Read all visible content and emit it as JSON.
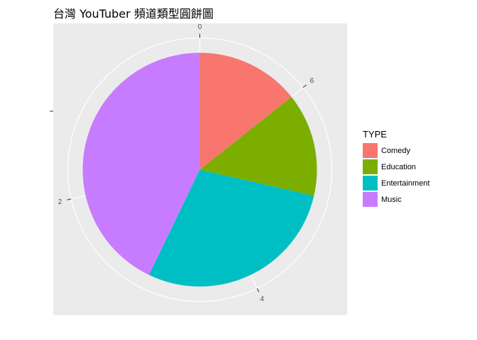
{
  "chart_data": {
    "type": "pie",
    "title": "台灣 YouTuber 頻道類型圓餅圖",
    "legend_title": "TYPE",
    "legend_position": "right",
    "categories": [
      "Comedy",
      "Education",
      "Entertainment",
      "Music"
    ],
    "values": [
      1,
      1,
      2,
      3
    ],
    "colors": [
      "#F8766D",
      "#7CAE00",
      "#00BFC4",
      "#C77CFF"
    ],
    "theta_ticks": [
      "0",
      "2",
      "4",
      "6"
    ],
    "theta_tick_values": [
      0,
      2,
      4,
      6
    ],
    "theta_total": 7,
    "direction": "counterclockwise",
    "stacking_order": "last-category-first",
    "background": "#EBEBEB",
    "grid": true
  }
}
